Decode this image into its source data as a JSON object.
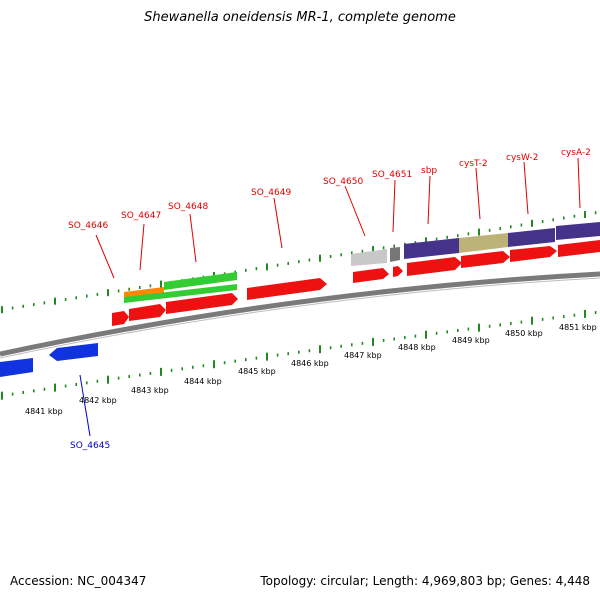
{
  "title": "Shewanella oneidensis MR-1, complete genome",
  "footer": {
    "accession": "Accession: NC_004347",
    "stats": "Topology: circular; Length: 4,969,803 bp; Genes: 4,448"
  },
  "colors": {
    "forward_cds": "#ee1111",
    "reverse_cds": "#1133dd",
    "green_feature": "#33cc33",
    "orange_feature": "#ff8800",
    "purple_feature": "#443388",
    "tan_feature": "#bbb377",
    "grey_feature": "#c8c8c8",
    "dark_grey_feature": "#777777",
    "backbone": "#888888",
    "tick": "#228822",
    "forward_label": "#e00000",
    "reverse_label": "#0000cc"
  },
  "ruler_labels": [
    "4841 kbp",
    "4842 kbp",
    "4843 kbp",
    "4844 kbp",
    "4845 kbp",
    "4846 kbp",
    "4847 kbp",
    "4848 kbp",
    "4849 kbp",
    "4850 kbp",
    "4851 kbp"
  ],
  "gene_labels_forward": [
    "SO_4646",
    "SO_4647",
    "SO_4648",
    "SO_4649",
    "SO_4650",
    "SO_4651",
    "sbp",
    "cysT-2",
    "cysW-2",
    "cysA-2"
  ],
  "gene_labels_reverse": [
    "SO_4645"
  ]
}
